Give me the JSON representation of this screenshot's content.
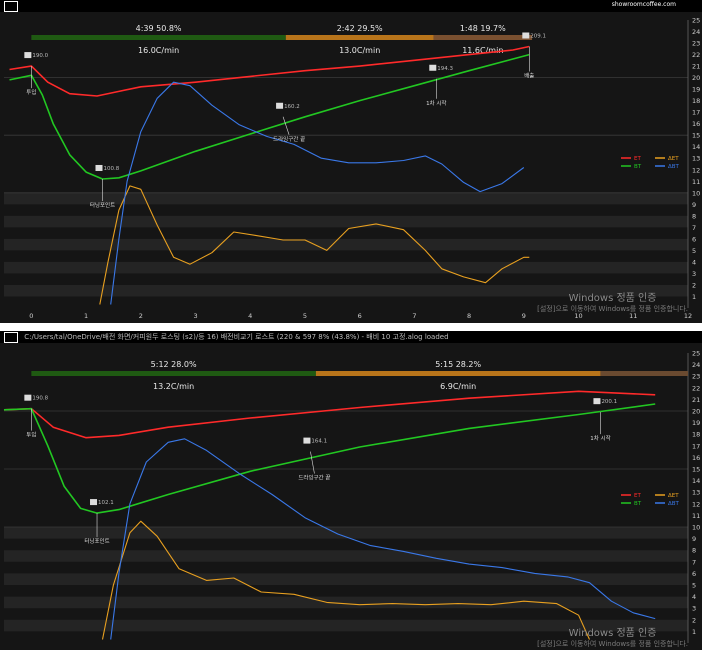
{
  "top": {
    "title_text": "",
    "brand": "showroomcoffee.com",
    "phases": [
      {
        "label": "4:39  50.8%",
        "color": "#1f5a12",
        "rate": "16.0C/min"
      },
      {
        "label": "2:42  29.5%",
        "color": "#b8741a",
        "rate": "13.0C/min"
      },
      {
        "label": "1:48  19.7%",
        "color": "#7a5030",
        "rate": "11.6C/min"
      }
    ],
    "x_ticks": [
      "0",
      "1",
      "2",
      "3",
      "4",
      "5",
      "6",
      "7",
      "8",
      "9",
      "10",
      "11",
      "12"
    ],
    "y_ticks": [
      "1",
      "2",
      "3",
      "4",
      "5",
      "6",
      "7",
      "8",
      "9",
      "10",
      "11",
      "12",
      "13",
      "14",
      "15",
      "16",
      "17",
      "18",
      "19",
      "20",
      "21",
      "22",
      "23",
      "24",
      "25"
    ],
    "annotations": [
      {
        "text": "투입",
        "tag": "190.0"
      },
      {
        "text": "터닝포인트",
        "tag": "100.8"
      },
      {
        "text": "드라잉구간 끝",
        "tag": "160.2"
      },
      {
        "text": "1차 시작",
        "tag": "194.3"
      },
      {
        "text": "배출",
        "tag": "209.1"
      }
    ],
    "legend": [
      {
        "name": "ET",
        "color": "#ff2a2a"
      },
      {
        "name": "BT",
        "color": "#22c722"
      },
      {
        "name": "ΔET",
        "color": "#e8a020"
      },
      {
        "name": "ΔBT",
        "color": "#3a78e8"
      }
    ],
    "watermark": "Windows 정품 인증",
    "watermark_sub": "[설정]으로 이동하여 Windows를 정품 인증합니다."
  },
  "bottom": {
    "title_text": "C:/Users/tal/OneDrive/배전 화면/커피원두 로스팅 (s2)/등 16) 배전비교기 로스트 (220 & 597 8% (43.8%) - 배비 10 고정.alog  loaded",
    "phases": [
      {
        "label": "5:12  28.0%",
        "color": "#1f5a12",
        "rate": "13.2C/min"
      },
      {
        "label": "5:15  28.2%",
        "color": "#b8741a",
        "rate": "6.9C/min"
      },
      {
        "label": "",
        "color": "#6a4a30",
        "rate": ""
      }
    ],
    "y_ticks": [
      "1",
      "2",
      "3",
      "4",
      "5",
      "6",
      "7",
      "8",
      "9",
      "10",
      "11",
      "12",
      "13",
      "14",
      "15",
      "16",
      "17",
      "18",
      "19",
      "20",
      "21",
      "22",
      "23",
      "24",
      "25"
    ],
    "annotations": [
      {
        "text": "투입",
        "tag": "190.8"
      },
      {
        "text": "터닝포인트",
        "tag": "102.1"
      },
      {
        "text": "드라잉구간 끝",
        "tag": "164.1"
      },
      {
        "text": "1차 시작",
        "tag": "200.1"
      }
    ],
    "legend": [
      {
        "name": "ET",
        "color": "#ff2a2a"
      },
      {
        "name": "BT",
        "color": "#22c722"
      },
      {
        "name": "ΔET",
        "color": "#e8a020"
      },
      {
        "name": "ΔBT",
        "color": "#3a78e8"
      }
    ],
    "watermark": "Windows 정품 인증",
    "watermark_sub": "[설정]으로 이동하여 Windows를 정품 인증합니다."
  },
  "chart_data": [
    {
      "type": "line",
      "x_axis": "minutes",
      "xlim": [
        -0.5,
        12
      ],
      "ylim": [
        0,
        25
      ],
      "series": [
        {
          "name": "ET",
          "color": "#ff2a2a",
          "points": [
            [
              -0.4,
              20.7
            ],
            [
              0,
              21.0
            ],
            [
              0.3,
              19.6
            ],
            [
              0.7,
              18.6
            ],
            [
              1.2,
              18.4
            ],
            [
              1.6,
              18.8
            ],
            [
              2,
              19.2
            ],
            [
              3,
              19.6
            ],
            [
              4,
              20.1
            ],
            [
              5,
              20.6
            ],
            [
              6,
              21.0
            ],
            [
              7,
              21.5
            ],
            [
              8,
              22.0
            ],
            [
              8.8,
              22.4
            ],
            [
              9.1,
              22.7
            ]
          ]
        },
        {
          "name": "BT",
          "color": "#22c722",
          "points": [
            [
              -0.4,
              19.8
            ],
            [
              0,
              20.2
            ],
            [
              0.2,
              18.5
            ],
            [
              0.4,
              16.0
            ],
            [
              0.7,
              13.3
            ],
            [
              1.0,
              11.8
            ],
            [
              1.3,
              11.2
            ],
            [
              1.6,
              11.3
            ],
            [
              2,
              11.9
            ],
            [
              3,
              13.6
            ],
            [
              4,
              15.1
            ],
            [
              5,
              16.6
            ],
            [
              6,
              18.0
            ],
            [
              7,
              19.3
            ],
            [
              8,
              20.6
            ],
            [
              9.1,
              22.0
            ]
          ]
        },
        {
          "name": "ΔET",
          "color": "#e8a020",
          "points": [
            [
              1.25,
              0.3
            ],
            [
              1.4,
              4
            ],
            [
              1.6,
              8.5
            ],
            [
              1.8,
              10.6
            ],
            [
              2.0,
              10.3
            ],
            [
              2.3,
              7.2
            ],
            [
              2.6,
              4.4
            ],
            [
              2.9,
              3.8
            ],
            [
              3.3,
              4.8
            ],
            [
              3.7,
              6.6
            ],
            [
              4.1,
              6.3
            ],
            [
              4.6,
              5.9
            ],
            [
              5.0,
              5.9
            ],
            [
              5.4,
              5.0
            ],
            [
              5.8,
              6.9
            ],
            [
              6.3,
              7.3
            ],
            [
              6.8,
              6.8
            ],
            [
              7.2,
              5.0
            ],
            [
              7.5,
              3.4
            ],
            [
              7.9,
              2.7
            ],
            [
              8.3,
              2.2
            ],
            [
              8.6,
              3.4
            ],
            [
              9.0,
              4.4
            ],
            [
              9.1,
              4.4
            ]
          ]
        },
        {
          "name": "ΔBT",
          "color": "#3a78e8",
          "points": [
            [
              1.45,
              0.3
            ],
            [
              1.6,
              6
            ],
            [
              1.75,
              11
            ],
            [
              2.0,
              15.3
            ],
            [
              2.3,
              18.2
            ],
            [
              2.6,
              19.6
            ],
            [
              2.9,
              19.3
            ],
            [
              3.3,
              17.6
            ],
            [
              3.8,
              15.9
            ],
            [
              4.3,
              14.9
            ],
            [
              4.8,
              14.2
            ],
            [
              5.3,
              13.0
            ],
            [
              5.8,
              12.6
            ],
            [
              6.3,
              12.6
            ],
            [
              6.8,
              12.8
            ],
            [
              7.2,
              13.2
            ],
            [
              7.5,
              12.5
            ],
            [
              7.9,
              10.9
            ],
            [
              8.2,
              10.1
            ],
            [
              8.6,
              10.8
            ],
            [
              9.0,
              12.2
            ]
          ]
        }
      ]
    },
    {
      "type": "line",
      "x_axis": "minutes",
      "xlim": [
        -0.5,
        12
      ],
      "ylim": [
        0,
        25
      ],
      "series": [
        {
          "name": "ET",
          "color": "#ff2a2a",
          "points": [
            [
              -0.5,
              20.1
            ],
            [
              0,
              20.2
            ],
            [
              0.4,
              18.6
            ],
            [
              1.0,
              17.7
            ],
            [
              1.6,
              17.9
            ],
            [
              2.5,
              18.6
            ],
            [
              4,
              19.4
            ],
            [
              6,
              20.3
            ],
            [
              8,
              21.1
            ],
            [
              10,
              21.7
            ],
            [
              11.4,
              21.4
            ]
          ]
        },
        {
          "name": "BT",
          "color": "#22c722",
          "points": [
            [
              -0.5,
              20.1
            ],
            [
              0,
              20.2
            ],
            [
              0.3,
              17.0
            ],
            [
              0.6,
              13.5
            ],
            [
              0.9,
              11.6
            ],
            [
              1.2,
              11.2
            ],
            [
              1.6,
              11.5
            ],
            [
              2.5,
              12.8
            ],
            [
              4,
              14.8
            ],
            [
              6,
              16.9
            ],
            [
              8,
              18.5
            ],
            [
              10,
              19.7
            ],
            [
              11.4,
              20.6
            ]
          ]
        },
        {
          "name": "ΔET",
          "color": "#e8a020",
          "points": [
            [
              1.3,
              0.3
            ],
            [
              1.5,
              5
            ],
            [
              1.8,
              9.5
            ],
            [
              2.0,
              10.5
            ],
            [
              2.3,
              9.2
            ],
            [
              2.7,
              6.4
            ],
            [
              3.2,
              5.4
            ],
            [
              3.7,
              5.6
            ],
            [
              4.2,
              4.4
            ],
            [
              4.8,
              4.2
            ],
            [
              5.4,
              3.5
            ],
            [
              6.0,
              3.3
            ],
            [
              6.6,
              3.4
            ],
            [
              7.2,
              3.3
            ],
            [
              7.8,
              3.4
            ],
            [
              8.4,
              3.3
            ],
            [
              9.0,
              3.6
            ],
            [
              9.6,
              3.4
            ],
            [
              10.0,
              2.4
            ],
            [
              10.2,
              0.3
            ]
          ]
        },
        {
          "name": "ΔBT",
          "color": "#3a78e8",
          "points": [
            [
              1.45,
              0.3
            ],
            [
              1.6,
              6
            ],
            [
              1.8,
              12
            ],
            [
              2.1,
              15.6
            ],
            [
              2.5,
              17.3
            ],
            [
              2.8,
              17.6
            ],
            [
              3.2,
              16.6
            ],
            [
              3.8,
              14.6
            ],
            [
              4.4,
              12.8
            ],
            [
              5.0,
              10.8
            ],
            [
              5.6,
              9.4
            ],
            [
              6.2,
              8.4
            ],
            [
              6.8,
              7.9
            ],
            [
              7.4,
              7.3
            ],
            [
              8.0,
              6.8
            ],
            [
              8.6,
              6.5
            ],
            [
              9.2,
              6.0
            ],
            [
              9.8,
              5.7
            ],
            [
              10.2,
              5.2
            ],
            [
              10.6,
              3.6
            ],
            [
              11.0,
              2.6
            ],
            [
              11.4,
              2.1
            ]
          ]
        }
      ]
    }
  ]
}
